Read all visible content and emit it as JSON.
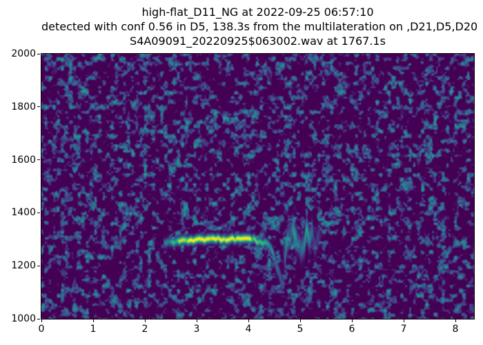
{
  "title": {
    "line1": "high-flat_D11_NG at 2022-09-25 06:57:10",
    "line2": "detected with conf 0.56 in D5, 138.3s from the multilateration on ,D21,D5,D20",
    "line3": "S4A09091_20220925$063002.wav at 1767.1s"
  },
  "chart_data": {
    "type": "heatmap",
    "subtype": "spectrogram",
    "title_lines": [
      "high-flat_D11_NG at 2022-09-25 06:57:10",
      "detected with conf 0.56 in D5, 138.3s from the multilateration on ,D21,D5,D20",
      "S4A09091_20220925$063002.wav at 1767.1s"
    ],
    "xlabel": "",
    "ylabel": "",
    "xlim": [
      0,
      8.36
    ],
    "ylim": [
      1000,
      2000
    ],
    "xticks": [
      0,
      1,
      2,
      3,
      4,
      5,
      6,
      7,
      8
    ],
    "yticks": [
      1000,
      1200,
      1400,
      1600,
      1800,
      2000
    ],
    "grid": false,
    "legend": null,
    "colormap": "viridis",
    "colormap_stops": [
      "#440154",
      "#482475",
      "#414487",
      "#355f8d",
      "#2a788e",
      "#21918c",
      "#22a884",
      "#44bf70",
      "#7ad151",
      "#bddf26",
      "#fde725"
    ],
    "figure_background": "#ffffff",
    "plot_background_value": 0.0,
    "noise": {
      "seed": 925571,
      "coarse_cell_w": 6,
      "coarse_cell_h": 7,
      "fine_cell": 3,
      "coarse_weight": 0.65,
      "threshold": 0.5,
      "contrast": 2.4,
      "max_value": 0.55
    },
    "signal": {
      "description": "flat whistle contour at ~1300 Hz from t=2.36s to t=4.4s, terminal downsweep to ~1120 Hz ending t=4.66s, scattered echo energy near 1280 Hz until t=5.45s",
      "bandwidth_hz": 10,
      "flat": {
        "t_start": 2.36,
        "t_end": 4.05,
        "freq_start": 1288,
        "freq_end": 1300,
        "peak_intensity": 1.0,
        "ramp_s": 0.5
      },
      "fade": {
        "t_start": 4.05,
        "t_end": 4.4,
        "freq_start": 1300,
        "freq_end": 1272,
        "intensity_start": 0.85,
        "intensity_end": 0.62
      },
      "downsweep": {
        "t_start": 4.4,
        "t_end": 4.66,
        "freq_start": 1272,
        "freq_end": 1118,
        "intensity_start": 0.62,
        "end_intensity": 0.2
      },
      "scatter": {
        "t_start": 4.66,
        "t_end": 5.45,
        "freq_center": 1282,
        "freq_spread": 60,
        "intensity": 0.45,
        "sigma_hz": 27
      }
    }
  }
}
